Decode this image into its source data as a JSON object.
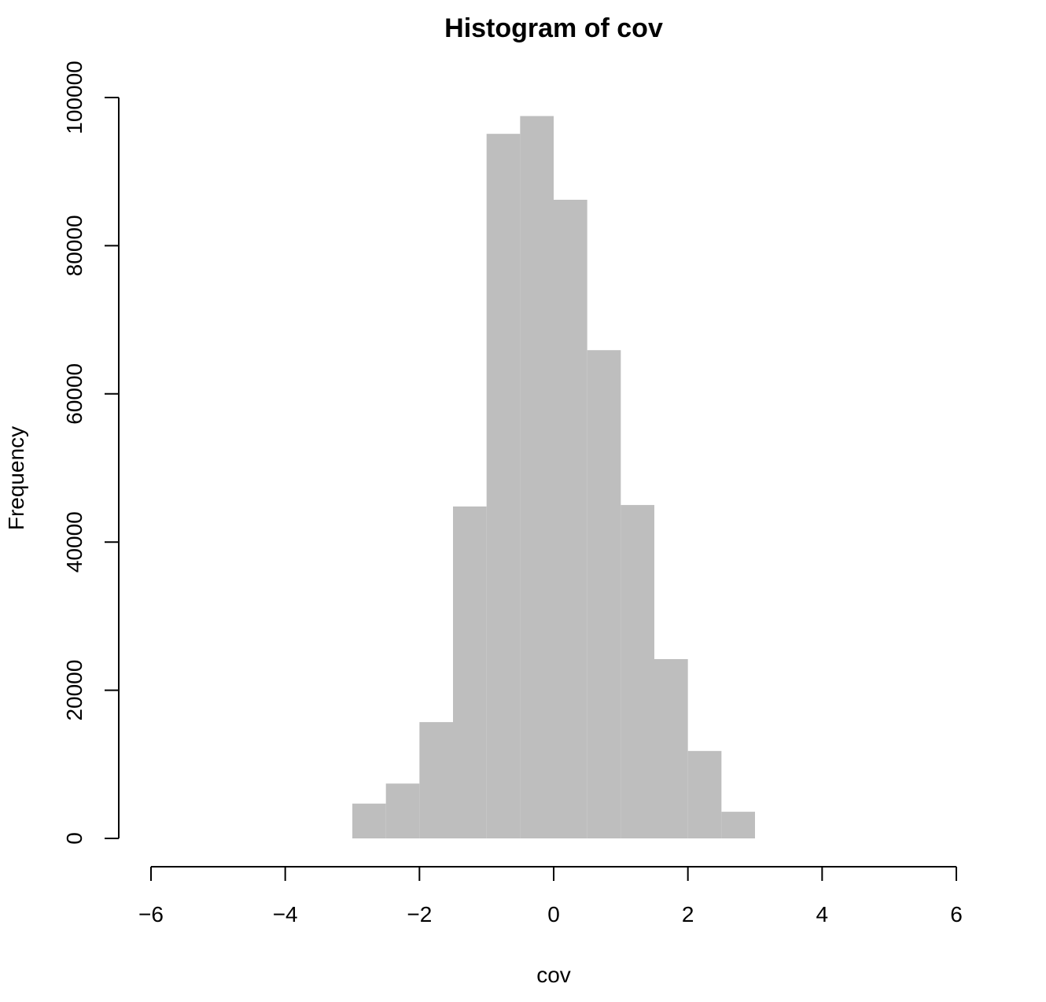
{
  "chart_data": {
    "type": "bar",
    "title": "Histogram of cov",
    "xlabel": "cov",
    "ylabel": "Frequency",
    "bar_color": "#bebebe",
    "xlim": [
      -6,
      6
    ],
    "ylim": [
      0,
      100000
    ],
    "x_ticks": [
      -6,
      -4,
      -2,
      0,
      2,
      4,
      6
    ],
    "x_tick_labels": [
      "−6",
      "−4",
      "−2",
      "0",
      "2",
      "4",
      "6"
    ],
    "y_ticks": [
      0,
      20000,
      40000,
      60000,
      80000,
      100000
    ],
    "y_tick_labels": [
      "0",
      "20000",
      "40000",
      "60000",
      "80000",
      "100000"
    ],
    "bins": [
      {
        "x0": -3.0,
        "x1": -2.5,
        "value": 4700
      },
      {
        "x0": -2.5,
        "x1": -2.0,
        "value": 7400
      },
      {
        "x0": -2.0,
        "x1": -1.5,
        "value": 15700
      },
      {
        "x0": -1.5,
        "x1": -1.0,
        "value": 44800
      },
      {
        "x0": -1.0,
        "x1": -0.5,
        "value": 95100
      },
      {
        "x0": -0.5,
        "x1": 0.0,
        "value": 97500
      },
      {
        "x0": 0.0,
        "x1": 0.5,
        "value": 86200
      },
      {
        "x0": 0.5,
        "x1": 1.0,
        "value": 65900
      },
      {
        "x0": 1.0,
        "x1": 1.5,
        "value": 45000
      },
      {
        "x0": 1.5,
        "x1": 2.0,
        "value": 24200
      },
      {
        "x0": 2.0,
        "x1": 2.5,
        "value": 11800
      },
      {
        "x0": 2.5,
        "x1": 3.0,
        "value": 3600
      }
    ]
  }
}
